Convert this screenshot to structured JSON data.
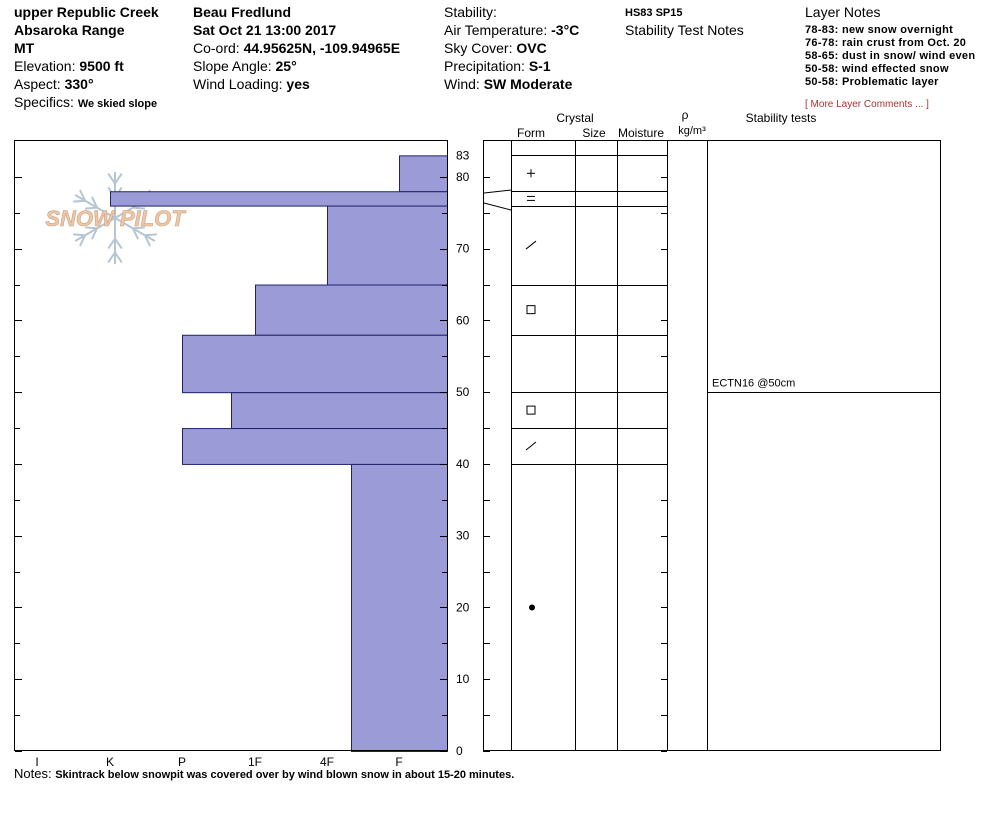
{
  "header": {
    "location": "upper Republic Creek",
    "range": "Absaroka Range",
    "state": "MT",
    "elevation_label": "Elevation:",
    "elevation_value": "9500 ft",
    "aspect_label": "Aspect:",
    "aspect_value": "330°",
    "specifics_label": "Specifics:",
    "specifics_value": "We skied slope",
    "observer": "Beau  Fredlund",
    "datetime": "Sat Oct 21 13:00 2017",
    "coord_label": "Co-ord:",
    "coord_value": "44.95625N, -109.94965E",
    "slope_label": "Slope Angle:",
    "slope_value": "25°",
    "wind_loading_label": "Wind Loading:",
    "wind_loading_value": "yes",
    "stability_label": "Stability:",
    "air_temp_label": "Air Temperature:",
    "air_temp_value": "-3°C",
    "sky_label": "Sky Cover:",
    "sky_value": "OVC",
    "precip_label": "Precipitation:",
    "precip_value": "S-1",
    "wind_label": "Wind:",
    "wind_value": "SW Moderate",
    "hs_sp": "HS83  SP15",
    "stability_test_notes": "Stability Test Notes"
  },
  "layer_notes": {
    "title": "Layer Notes",
    "items": [
      "78-83: new snow overnight",
      "76-78: rain crust from Oct. 20",
      "58-65: dust in snow/ wind even",
      "50-58: wind effected snow",
      "50-58: Problematic layer"
    ],
    "more": "[ More Layer Comments ... ]"
  },
  "watermark": "SNOW PILOT",
  "columns": {
    "crystal": "Crystal",
    "form": "Form",
    "size": "Size",
    "moisture": "Moisture",
    "rho": "ρ",
    "density_unit": "kg/m³",
    "stability_tests": "Stability tests"
  },
  "notes": {
    "label": "Notes:",
    "text": "Skintrack below snowpit was covered over by wind blown snow in about 15-20 minutes."
  },
  "colors": {
    "bar_fill": "#9b9bd7",
    "bar_stroke": "#22226a",
    "flake": "#b6c5d2",
    "logo_text": "#f1c7a0",
    "link": "#b03030"
  },
  "chart_data": {
    "type": "bar",
    "orientation": "horizontal",
    "title": "",
    "y_axis": {
      "label": "",
      "min": 0,
      "max": 85,
      "ticks": [
        0,
        10,
        20,
        30,
        40,
        50,
        60,
        70,
        80,
        83
      ]
    },
    "x_axis": {
      "categories": [
        "I",
        "K",
        "P",
        "1F",
        "4F",
        "F"
      ]
    },
    "series": [
      {
        "values": [
          {
            "top": 83,
            "bottom": 78,
            "hardness": "F"
          },
          {
            "top": 78,
            "bottom": 76,
            "hardness": "K"
          },
          {
            "top": 76,
            "bottom": 65,
            "hardness": "4F"
          },
          {
            "top": 65,
            "bottom": 58,
            "hardness": "1F"
          },
          {
            "top": 58,
            "bottom": 50,
            "hardness": "P"
          },
          {
            "top": 50,
            "bottom": 45,
            "hardness": "1F-"
          },
          {
            "top": 45,
            "bottom": 40,
            "hardness": "P"
          },
          {
            "top": 40,
            "bottom": 0,
            "hardness": "4F+"
          }
        ]
      }
    ],
    "grain_forms": [
      {
        "top": 83,
        "bottom": 78,
        "symbol": "+"
      },
      {
        "top": 78,
        "bottom": 76,
        "symbol": "="
      },
      {
        "top": 76,
        "bottom": 65,
        "symbol": "⁄"
      },
      {
        "top": 65,
        "bottom": 58,
        "symbol": "□"
      },
      {
        "top": 50,
        "bottom": 45,
        "symbol": "□"
      },
      {
        "top": 45,
        "bottom": 40,
        "symbol": "⁄"
      },
      {
        "top": 40,
        "bottom": 0,
        "symbol": "●"
      }
    ],
    "boundaries": [
      83,
      78,
      76,
      65,
      58,
      50,
      45,
      40
    ],
    "stability_tests": [
      {
        "depth": 50,
        "label": "ECTN16 @50cm"
      }
    ]
  }
}
